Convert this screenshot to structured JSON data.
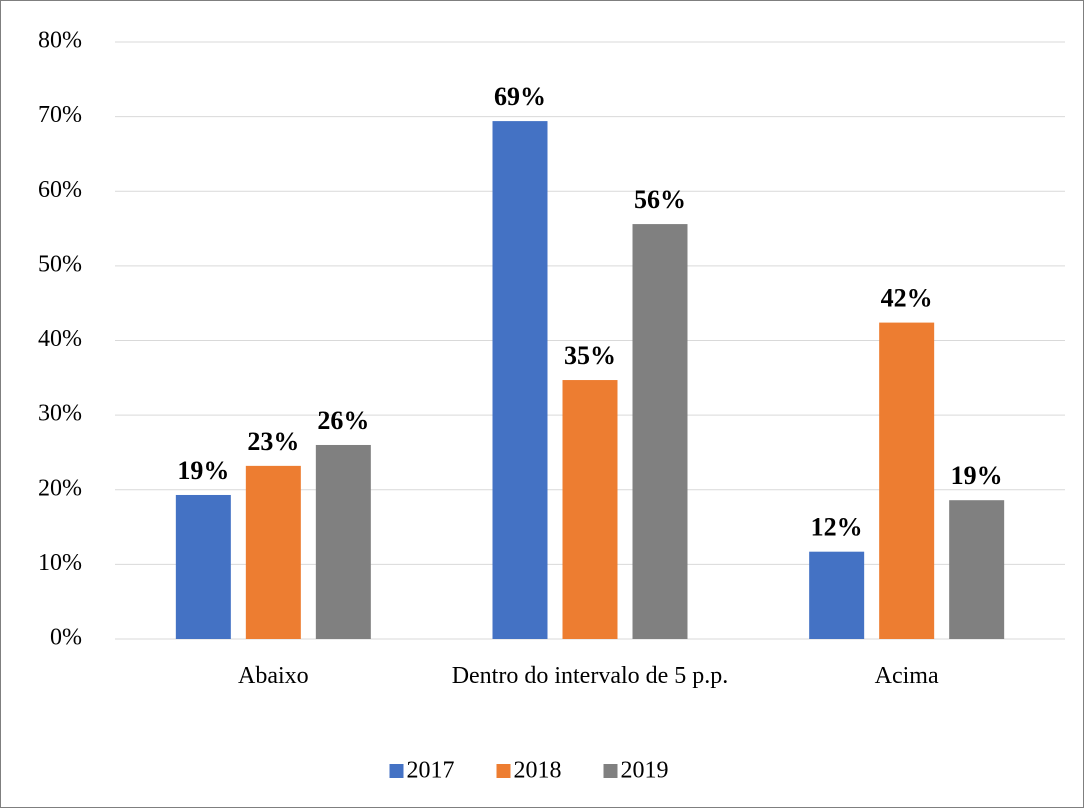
{
  "chart_data": {
    "type": "bar",
    "categories": [
      "Abaixo",
      "Dentro do intervalo de 5 p.p.",
      "Acima"
    ],
    "series": [
      {
        "name": "2017",
        "color": "#4472c4",
        "values": [
          19.3,
          69.4,
          11.7
        ],
        "value_labels": [
          "19%",
          "69%",
          "12%"
        ]
      },
      {
        "name": "2018",
        "color": "#ed7d31",
        "values": [
          23.2,
          34.7,
          42.4
        ],
        "value_labels": [
          "23%",
          "35%",
          "42%"
        ]
      },
      {
        "name": "2019",
        "color": "#808080",
        "values": [
          26.0,
          55.6,
          18.6
        ],
        "value_labels": [
          "26%",
          "56%",
          "19%"
        ]
      }
    ],
    "ylim": [
      0,
      80
    ],
    "yticks": [
      {
        "value": 0,
        "label": "0%"
      },
      {
        "value": 10,
        "label": "10%"
      },
      {
        "value": 20,
        "label": "20%"
      },
      {
        "value": 30,
        "label": "30%"
      },
      {
        "value": 40,
        "label": "40%"
      },
      {
        "value": 50,
        "label": "50%"
      },
      {
        "value": 60,
        "label": "60%"
      },
      {
        "value": 70,
        "label": "70%"
      },
      {
        "value": 80,
        "label": "80%"
      }
    ],
    "grid": true,
    "legend": "bottom"
  }
}
